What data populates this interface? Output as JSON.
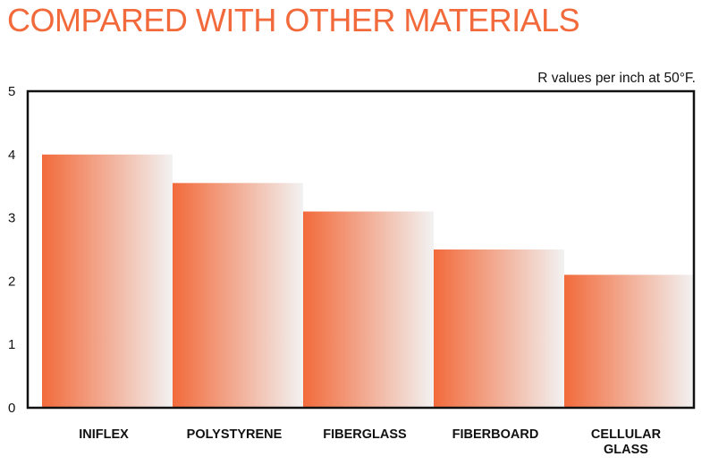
{
  "colors": {
    "accent": "#f26a3b",
    "bar_start": "#f26a3b",
    "bar_end": "#f2f2f2",
    "frame": "#111111"
  },
  "chart_data": {
    "type": "bar",
    "title": "COMPARED WITH OTHER MATERIALS",
    "subtitle": "R values per inch at 50°F.",
    "xlabel": "",
    "ylabel": "",
    "categories": [
      "INIFLEX",
      "POLYSTYRENE",
      "FIBERGLASS",
      "FIBERBOARD",
      "CELLULAR GLASS"
    ],
    "category_lines": [
      [
        "INIFLEX"
      ],
      [
        "POLYSTYRENE"
      ],
      [
        "FIBERGLASS"
      ],
      [
        "FIBERBOARD"
      ],
      [
        "CELLULAR",
        "GLASS"
      ]
    ],
    "values": [
      4.0,
      3.55,
      3.1,
      2.5,
      2.1
    ],
    "ylim": [
      0,
      5
    ],
    "yticks": [
      "0",
      "1",
      "2",
      "3",
      "4",
      "5"
    ],
    "grid": false,
    "legend": "none"
  }
}
